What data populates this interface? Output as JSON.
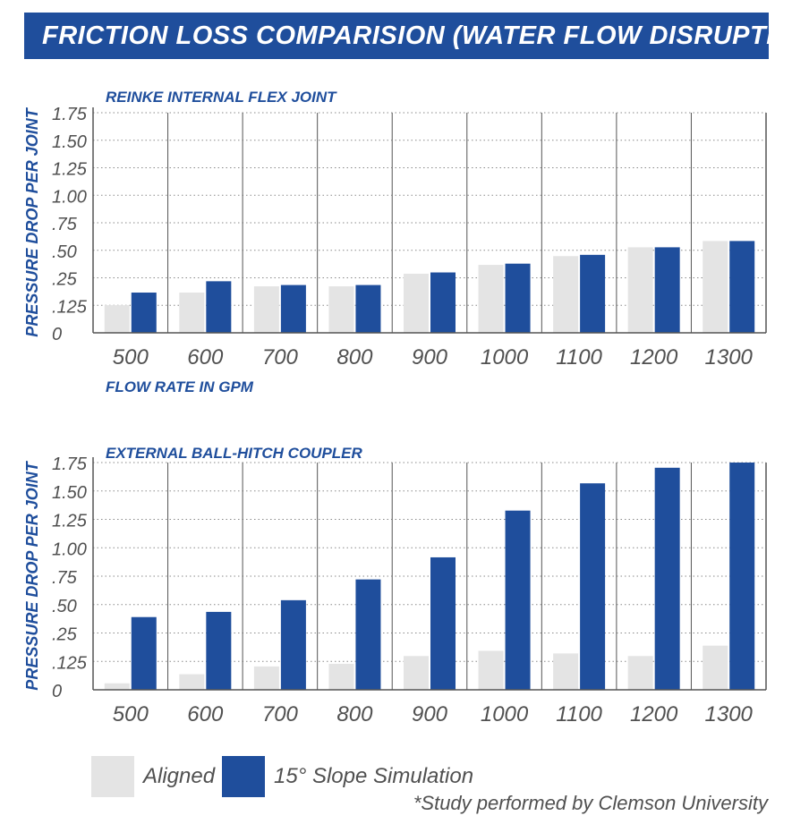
{
  "header": {
    "title": "FRICTION LOSS COMPARISION (WATER FLOW DISRUPTION)"
  },
  "colors": {
    "banner": "#1f4e9c",
    "aligned": "#e4e4e4",
    "slope": "#1f4e9c",
    "axis_text": "#505050",
    "title_text": "#1f4e9c"
  },
  "chart_data": [
    {
      "type": "bar",
      "title": "REINKE INTERNAL FLEX JOINT",
      "xlabel": "FLOW RATE IN GPM",
      "ylabel": "PRESSURE DROP PER JOINT",
      "ylim": [
        0,
        1.75
      ],
      "yticks": [
        "0",
        ".125",
        ".25",
        ".50",
        ".75",
        "1.00",
        "1.25",
        "1.50",
        "1.75"
      ],
      "grid": true,
      "categories": [
        "500",
        "600",
        "700",
        "800",
        "900",
        "1000",
        "1100",
        "1200",
        "1300"
      ],
      "series": [
        {
          "name": "Aligned",
          "values": [
            0.22,
            0.32,
            0.37,
            0.37,
            0.47,
            0.54,
            0.61,
            0.68,
            0.73
          ]
        },
        {
          "name": "15° Slope Simulation",
          "values": [
            0.32,
            0.41,
            0.38,
            0.38,
            0.48,
            0.55,
            0.62,
            0.68,
            0.73
          ]
        }
      ]
    },
    {
      "type": "bar",
      "title": "EXTERNAL BALL-HITCH COUPLER",
      "xlabel": "",
      "ylabel": "PRESSURE DROP PER JOINT",
      "ylim": [
        0,
        1.75
      ],
      "yticks": [
        "0",
        ".125",
        ".25",
        ".50",
        ".75",
        "1.00",
        "1.25",
        "1.50",
        "1.75"
      ],
      "grid": true,
      "categories": [
        "500",
        "600",
        "700",
        "800",
        "900",
        "1000",
        "1100",
        "1200",
        "1300"
      ],
      "series": [
        {
          "name": "Aligned",
          "values": [
            0.05,
            0.12,
            0.18,
            0.2,
            0.26,
            0.3,
            0.28,
            0.26,
            0.34
          ]
        },
        {
          "name": "15° Slope Simulation",
          "values": [
            0.56,
            0.6,
            0.69,
            0.85,
            1.02,
            1.38,
            1.59,
            1.71,
            1.81
          ]
        }
      ]
    }
  ],
  "legend": {
    "aligned": "Aligned",
    "slope": "15° Slope Simulation"
  },
  "footnote": "*Study performed by Clemson University"
}
